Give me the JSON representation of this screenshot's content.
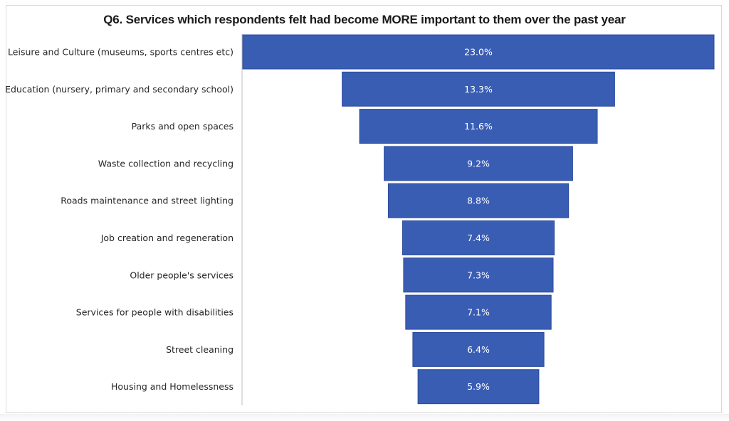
{
  "chart_data": {
    "type": "bar",
    "orientation": "horizontal",
    "style": "funnel-centered",
    "title": "Q6. Services which respondents felt had become MORE important to them over the past year",
    "xlabel": "",
    "ylabel": "",
    "categories": [
      "Leisure and Culture (museums, sports centres etc)",
      "Education (nursery, primary and secondary school)",
      "Parks and open spaces",
      "Waste collection and recycling",
      "Roads maintenance and street lighting",
      "Job creation and regeneration",
      "Older people's services",
      "Services for people with disabilities",
      "Street cleaning",
      "Housing and Homelessness"
    ],
    "values": [
      23.0,
      13.3,
      11.6,
      9.2,
      8.8,
      7.4,
      7.3,
      7.1,
      6.4,
      5.9
    ],
    "data_labels": [
      "23.0%",
      "13.3%",
      "11.6%",
      "9.2%",
      "8.8%",
      "7.4%",
      "7.3%",
      "7.1%",
      "6.4%",
      "5.9%"
    ],
    "unit": "%",
    "xlim": [
      0,
      23.0
    ],
    "grid": false,
    "legend": "none",
    "bar_color": "#3a5db4",
    "bar_border_color": "#2c4a9c",
    "axis_line_color": "#bfbfbf"
  }
}
